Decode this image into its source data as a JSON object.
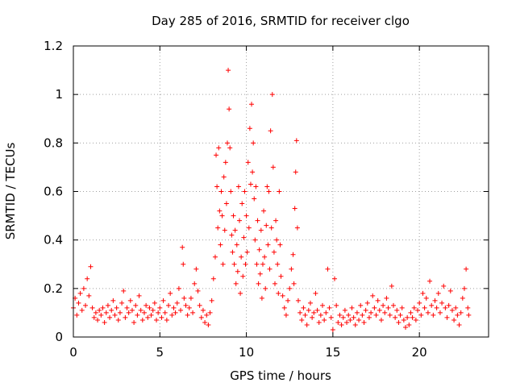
{
  "chart_data": {
    "type": "scatter",
    "title": "Day 285 of 2016, SRMTID for receiver clgo",
    "xlabel": "GPS time / hours",
    "ylabel": "SRMTID / TECUs",
    "xlim": [
      0,
      24
    ],
    "ylim": [
      0,
      1.2
    ],
    "xticks": [
      0,
      5,
      10,
      15,
      20
    ],
    "xtick_labels": [
      "0",
      "5",
      "10",
      "15",
      "20"
    ],
    "yticks": [
      0,
      0.2,
      0.4,
      0.6,
      0.8,
      1.0,
      1.2
    ],
    "ytick_labels": [
      "0",
      "0.2",
      "0.4",
      "0.6",
      "0.8",
      "1",
      "1.2"
    ],
    "grid": true,
    "marker": "+",
    "series": [
      {
        "name": "SRMTID",
        "color": "#ff0000",
        "points": [
          [
            0.0,
            0.12
          ],
          [
            0.1,
            0.16
          ],
          [
            0.2,
            0.09
          ],
          [
            0.3,
            0.14
          ],
          [
            0.4,
            0.18
          ],
          [
            0.5,
            0.11
          ],
          [
            0.6,
            0.2
          ],
          [
            0.7,
            0.13
          ],
          [
            0.8,
            0.24
          ],
          [
            0.9,
            0.17
          ],
          [
            1.0,
            0.29
          ],
          [
            1.1,
            0.12
          ],
          [
            1.2,
            0.08
          ],
          [
            1.3,
            0.1
          ],
          [
            1.4,
            0.07
          ],
          [
            1.5,
            0.11
          ],
          [
            1.6,
            0.09
          ],
          [
            1.7,
            0.12
          ],
          [
            1.8,
            0.06
          ],
          [
            1.9,
            0.1
          ],
          [
            2.0,
            0.13
          ],
          [
            2.1,
            0.08
          ],
          [
            2.2,
            0.11
          ],
          [
            2.3,
            0.15
          ],
          [
            2.4,
            0.09
          ],
          [
            2.5,
            0.12
          ],
          [
            2.6,
            0.07
          ],
          [
            2.7,
            0.1
          ],
          [
            2.8,
            0.14
          ],
          [
            2.9,
            0.19
          ],
          [
            3.0,
            0.08
          ],
          [
            3.1,
            0.12
          ],
          [
            3.2,
            0.1
          ],
          [
            3.3,
            0.15
          ],
          [
            3.4,
            0.11
          ],
          [
            3.5,
            0.06
          ],
          [
            3.6,
            0.13
          ],
          [
            3.7,
            0.09
          ],
          [
            3.8,
            0.17
          ],
          [
            3.9,
            0.11
          ],
          [
            4.0,
            0.07
          ],
          [
            4.1,
            0.1
          ],
          [
            4.2,
            0.13
          ],
          [
            4.3,
            0.08
          ],
          [
            4.4,
            0.12
          ],
          [
            4.5,
            0.09
          ],
          [
            4.6,
            0.11
          ],
          [
            4.7,
            0.14
          ],
          [
            4.8,
            0.07
          ],
          [
            4.9,
            0.1
          ],
          [
            5.0,
            0.12
          ],
          [
            5.1,
            0.08
          ],
          [
            5.2,
            0.15
          ],
          [
            5.3,
            0.1
          ],
          [
            5.4,
            0.07
          ],
          [
            5.5,
            0.13
          ],
          [
            5.6,
            0.18
          ],
          [
            5.7,
            0.09
          ],
          [
            5.8,
            0.12
          ],
          [
            5.9,
            0.1
          ],
          [
            6.0,
            0.14
          ],
          [
            6.1,
            0.2
          ],
          [
            6.2,
            0.11
          ],
          [
            6.3,
            0.37
          ],
          [
            6.35,
            0.3
          ],
          [
            6.4,
            0.16
          ],
          [
            6.5,
            0.13
          ],
          [
            6.6,
            0.09
          ],
          [
            6.7,
            0.12
          ],
          [
            6.8,
            0.16
          ],
          [
            6.9,
            0.1
          ],
          [
            7.0,
            0.22
          ],
          [
            7.1,
            0.28
          ],
          [
            7.2,
            0.19
          ],
          [
            7.3,
            0.13
          ],
          [
            7.4,
            0.08
          ],
          [
            7.5,
            0.11
          ],
          [
            7.6,
            0.06
          ],
          [
            7.7,
            0.09
          ],
          [
            7.8,
            0.05
          ],
          [
            7.9,
            0.1
          ],
          [
            8.0,
            0.15
          ],
          [
            8.1,
            0.24
          ],
          [
            8.2,
            0.33
          ],
          [
            8.25,
            0.75
          ],
          [
            8.3,
            0.62
          ],
          [
            8.35,
            0.45
          ],
          [
            8.4,
            0.78
          ],
          [
            8.45,
            0.52
          ],
          [
            8.5,
            0.38
          ],
          [
            8.55,
            0.6
          ],
          [
            8.6,
            0.5
          ],
          [
            8.65,
            0.3
          ],
          [
            8.7,
            0.66
          ],
          [
            8.75,
            0.44
          ],
          [
            8.8,
            0.72
          ],
          [
            8.85,
            0.55
          ],
          [
            8.9,
            0.8
          ],
          [
            8.95,
            1.1
          ],
          [
            9.0,
            0.94
          ],
          [
            9.05,
            0.78
          ],
          [
            9.1,
            0.6
          ],
          [
            9.15,
            0.42
          ],
          [
            9.2,
            0.35
          ],
          [
            9.25,
            0.5
          ],
          [
            9.3,
            0.3
          ],
          [
            9.35,
            0.44
          ],
          [
            9.4,
            0.22
          ],
          [
            9.45,
            0.38
          ],
          [
            9.5,
            0.27
          ],
          [
            9.55,
            0.62
          ],
          [
            9.6,
            0.48
          ],
          [
            9.65,
            0.18
          ],
          [
            9.7,
            0.33
          ],
          [
            9.75,
            0.55
          ],
          [
            9.8,
            0.25
          ],
          [
            9.85,
            0.41
          ],
          [
            9.9,
            0.6
          ],
          [
            9.95,
            0.3
          ],
          [
            10.0,
            0.5
          ],
          [
            10.05,
            0.35
          ],
          [
            10.1,
            0.72
          ],
          [
            10.15,
            0.45
          ],
          [
            10.2,
            0.86
          ],
          [
            10.25,
            0.63
          ],
          [
            10.3,
            0.96
          ],
          [
            10.35,
            0.68
          ],
          [
            10.4,
            0.8
          ],
          [
            10.45,
            0.57
          ],
          [
            10.5,
            0.4
          ],
          [
            10.55,
            0.62
          ],
          [
            10.6,
            0.3
          ],
          [
            10.65,
            0.48
          ],
          [
            10.7,
            0.22
          ],
          [
            10.75,
            0.36
          ],
          [
            10.8,
            0.26
          ],
          [
            10.85,
            0.44
          ],
          [
            10.9,
            0.16
          ],
          [
            10.95,
            0.3
          ],
          [
            11.0,
            0.52
          ],
          [
            11.05,
            0.33
          ],
          [
            11.1,
            0.2
          ],
          [
            11.15,
            0.46
          ],
          [
            11.2,
            0.62
          ],
          [
            11.25,
            0.38
          ],
          [
            11.3,
            0.6
          ],
          [
            11.35,
            0.28
          ],
          [
            11.4,
            0.85
          ],
          [
            11.45,
            0.45
          ],
          [
            11.5,
            1.0
          ],
          [
            11.55,
            0.7
          ],
          [
            11.6,
            0.35
          ],
          [
            11.65,
            0.22
          ],
          [
            11.7,
            0.48
          ],
          [
            11.75,
            0.4
          ],
          [
            11.8,
            0.3
          ],
          [
            11.85,
            0.18
          ],
          [
            11.9,
            0.6
          ],
          [
            11.95,
            0.38
          ],
          [
            12.0,
            0.25
          ],
          [
            12.1,
            0.17
          ],
          [
            12.2,
            0.12
          ],
          [
            12.3,
            0.09
          ],
          [
            12.4,
            0.15
          ],
          [
            12.5,
            0.2
          ],
          [
            12.6,
            0.28
          ],
          [
            12.7,
            0.34
          ],
          [
            12.75,
            0.22
          ],
          [
            12.8,
            0.53
          ],
          [
            12.85,
            0.68
          ],
          [
            12.9,
            0.81
          ],
          [
            12.95,
            0.45
          ],
          [
            13.0,
            0.15
          ],
          [
            13.1,
            0.1
          ],
          [
            13.2,
            0.07
          ],
          [
            13.3,
            0.12
          ],
          [
            13.4,
            0.09
          ],
          [
            13.5,
            0.05
          ],
          [
            13.6,
            0.11
          ],
          [
            13.7,
            0.14
          ],
          [
            13.8,
            0.08
          ],
          [
            13.9,
            0.1
          ],
          [
            14.0,
            0.18
          ],
          [
            14.1,
            0.11
          ],
          [
            14.2,
            0.06
          ],
          [
            14.3,
            0.09
          ],
          [
            14.4,
            0.13
          ],
          [
            14.5,
            0.07
          ],
          [
            14.6,
            0.1
          ],
          [
            14.7,
            0.28
          ],
          [
            14.8,
            0.12
          ],
          [
            14.9,
            0.08
          ],
          [
            15.0,
            0.03
          ],
          [
            15.1,
            0.24
          ],
          [
            15.2,
            0.13
          ],
          [
            15.3,
            0.06
          ],
          [
            15.4,
            0.09
          ],
          [
            15.5,
            0.05
          ],
          [
            15.6,
            0.08
          ],
          [
            15.7,
            0.11
          ],
          [
            15.8,
            0.06
          ],
          [
            15.9,
            0.09
          ],
          [
            16.0,
            0.07
          ],
          [
            16.1,
            0.12
          ],
          [
            16.2,
            0.08
          ],
          [
            16.3,
            0.05
          ],
          [
            16.4,
            0.1
          ],
          [
            16.5,
            0.07
          ],
          [
            16.6,
            0.13
          ],
          [
            16.7,
            0.09
          ],
          [
            16.8,
            0.06
          ],
          [
            16.9,
            0.11
          ],
          [
            17.0,
            0.14
          ],
          [
            17.1,
            0.08
          ],
          [
            17.2,
            0.1
          ],
          [
            17.3,
            0.17
          ],
          [
            17.4,
            0.12
          ],
          [
            17.5,
            0.09
          ],
          [
            17.6,
            0.15
          ],
          [
            17.7,
            0.11
          ],
          [
            17.8,
            0.07
          ],
          [
            17.9,
            0.13
          ],
          [
            18.0,
            0.1
          ],
          [
            18.1,
            0.16
          ],
          [
            18.2,
            0.12
          ],
          [
            18.3,
            0.09
          ],
          [
            18.4,
            0.21
          ],
          [
            18.5,
            0.13
          ],
          [
            18.6,
            0.08
          ],
          [
            18.7,
            0.11
          ],
          [
            18.8,
            0.06
          ],
          [
            18.9,
            0.09
          ],
          [
            19.0,
            0.12
          ],
          [
            19.1,
            0.07
          ],
          [
            19.2,
            0.04
          ],
          [
            19.3,
            0.08
          ],
          [
            19.4,
            0.05
          ],
          [
            19.5,
            0.1
          ],
          [
            19.6,
            0.08
          ],
          [
            19.7,
            0.12
          ],
          [
            19.8,
            0.07
          ],
          [
            19.9,
            0.11
          ],
          [
            20.0,
            0.14
          ],
          [
            20.1,
            0.09
          ],
          [
            20.2,
            0.18
          ],
          [
            20.3,
            0.12
          ],
          [
            20.4,
            0.16
          ],
          [
            20.5,
            0.1
          ],
          [
            20.6,
            0.23
          ],
          [
            20.7,
            0.13
          ],
          [
            20.8,
            0.09
          ],
          [
            20.9,
            0.15
          ],
          [
            21.0,
            0.12
          ],
          [
            21.1,
            0.18
          ],
          [
            21.2,
            0.1
          ],
          [
            21.3,
            0.14
          ],
          [
            21.4,
            0.21
          ],
          [
            21.5,
            0.12
          ],
          [
            21.6,
            0.08
          ],
          [
            21.7,
            0.13
          ],
          [
            21.8,
            0.19
          ],
          [
            21.9,
            0.11
          ],
          [
            22.0,
            0.07
          ],
          [
            22.1,
            0.12
          ],
          [
            22.2,
            0.09
          ],
          [
            22.3,
            0.05
          ],
          [
            22.4,
            0.1
          ],
          [
            22.5,
            0.16
          ],
          [
            22.6,
            0.2
          ],
          [
            22.7,
            0.28
          ],
          [
            22.8,
            0.12
          ],
          [
            22.85,
            0.09
          ]
        ]
      }
    ]
  }
}
